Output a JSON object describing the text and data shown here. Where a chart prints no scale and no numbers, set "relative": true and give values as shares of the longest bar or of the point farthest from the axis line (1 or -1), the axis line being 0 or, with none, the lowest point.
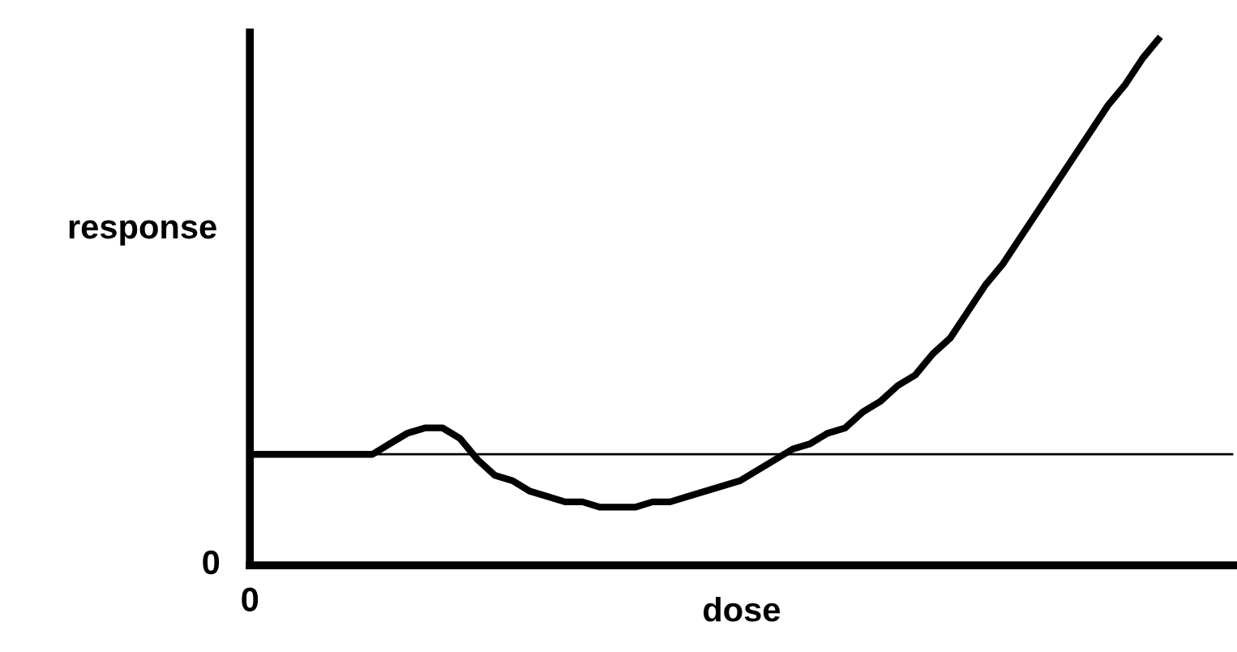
{
  "chart_data": {
    "type": "line",
    "relative": true,
    "xlabel": "dose",
    "ylabel": "response",
    "categories": [
      null,
      null,
      null,
      null,
      null,
      null,
      null,
      null,
      null,
      null,
      null,
      null,
      null,
      null,
      null,
      null,
      null,
      null,
      null,
      null,
      null,
      null,
      null,
      null,
      null,
      null,
      null,
      null,
      null,
      null,
      null,
      null,
      null,
      null,
      null,
      null,
      null,
      null,
      null,
      null,
      null,
      null,
      null,
      null,
      null,
      null,
      null,
      null,
      null,
      null,
      null,
      null,
      null
    ],
    "series": [
      {
        "color": "#000000",
        "values": [
          0.21,
          0.21,
          0.21,
          0.21,
          0.21,
          0.21,
          0.21,
          0.21,
          0.23,
          0.25,
          0.26,
          0.26,
          0.24,
          0.2,
          0.17,
          0.16,
          0.14,
          0.13,
          0.12,
          0.12,
          0.11,
          0.11,
          0.11,
          0.12,
          0.12,
          0.13,
          0.14,
          0.15,
          0.16,
          0.18,
          0.2,
          0.22,
          0.23,
          0.25,
          0.26,
          0.29,
          0.31,
          0.34,
          0.36,
          0.4,
          0.43,
          0.48,
          0.53,
          0.57,
          0.62,
          0.67,
          0.72,
          0.77,
          0.82,
          0.87,
          0.91,
          0.96,
          1
        ]
      }
    ],
    "ref_lines": [
      {
        "axis": "y",
        "value": 0.21,
        "color": "#000000"
      }
    ],
    "annotations": [
      "0",
      "0"
    ],
    "marker": "none",
    "line_style": "solid"
  }
}
